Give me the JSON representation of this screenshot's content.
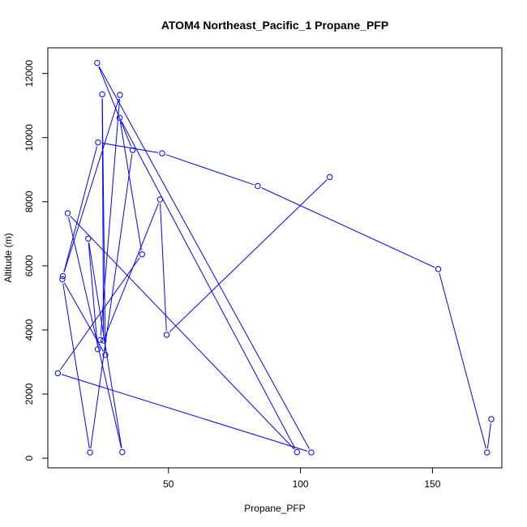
{
  "chart_data": {
    "type": "line",
    "title": "ATOM4 Northeast_Pacific_1 Propane_PFP",
    "xlabel": "Propane_PFP",
    "ylabel": "Altitude (m)",
    "xlim": [
      4.3,
      176.3
    ],
    "ylim": [
      -300,
      12800
    ],
    "x_ticks": [
      50,
      100,
      150
    ],
    "y_ticks": [
      0,
      2000,
      4000,
      6000,
      8000,
      10000,
      12000
    ],
    "series_color": "#0000ff",
    "series": [
      {
        "points": [
          {
            "x": 172.3,
            "y": 1220
          },
          {
            "x": 170.7,
            "y": 180
          },
          {
            "x": 152.2,
            "y": 5900
          },
          {
            "x": 83.8,
            "y": 8490
          },
          {
            "x": 47.6,
            "y": 9510
          },
          {
            "x": 23.3,
            "y": 9850
          },
          {
            "x": 10.0,
            "y": 5680
          },
          {
            "x": 31.6,
            "y": 11330
          },
          {
            "x": 24.2,
            "y": 3690
          },
          {
            "x": 23.2,
            "y": 3400
          },
          {
            "x": 19.6,
            "y": 6850
          },
          {
            "x": 32.5,
            "y": 190
          },
          {
            "x": 11.8,
            "y": 7640
          },
          {
            "x": 98.7,
            "y": 190
          },
          {
            "x": 31.5,
            "y": 10620
          },
          {
            "x": 40.0,
            "y": 6360
          },
          {
            "x": 8.1,
            "y": 2650
          },
          {
            "x": 104.1,
            "y": 180
          },
          {
            "x": 23.0,
            "y": 12330
          },
          {
            "x": 36.4,
            "y": 9610
          },
          {
            "x": 20.3,
            "y": 180
          },
          {
            "x": 9.8,
            "y": 5580
          },
          {
            "x": 26.1,
            "y": 3220
          },
          {
            "x": 24.9,
            "y": 11350
          },
          {
            "x": 25.4,
            "y": 3670
          },
          {
            "x": 46.8,
            "y": 8070
          },
          {
            "x": 49.3,
            "y": 3850
          },
          {
            "x": 111.1,
            "y": 8770
          }
        ]
      }
    ]
  }
}
